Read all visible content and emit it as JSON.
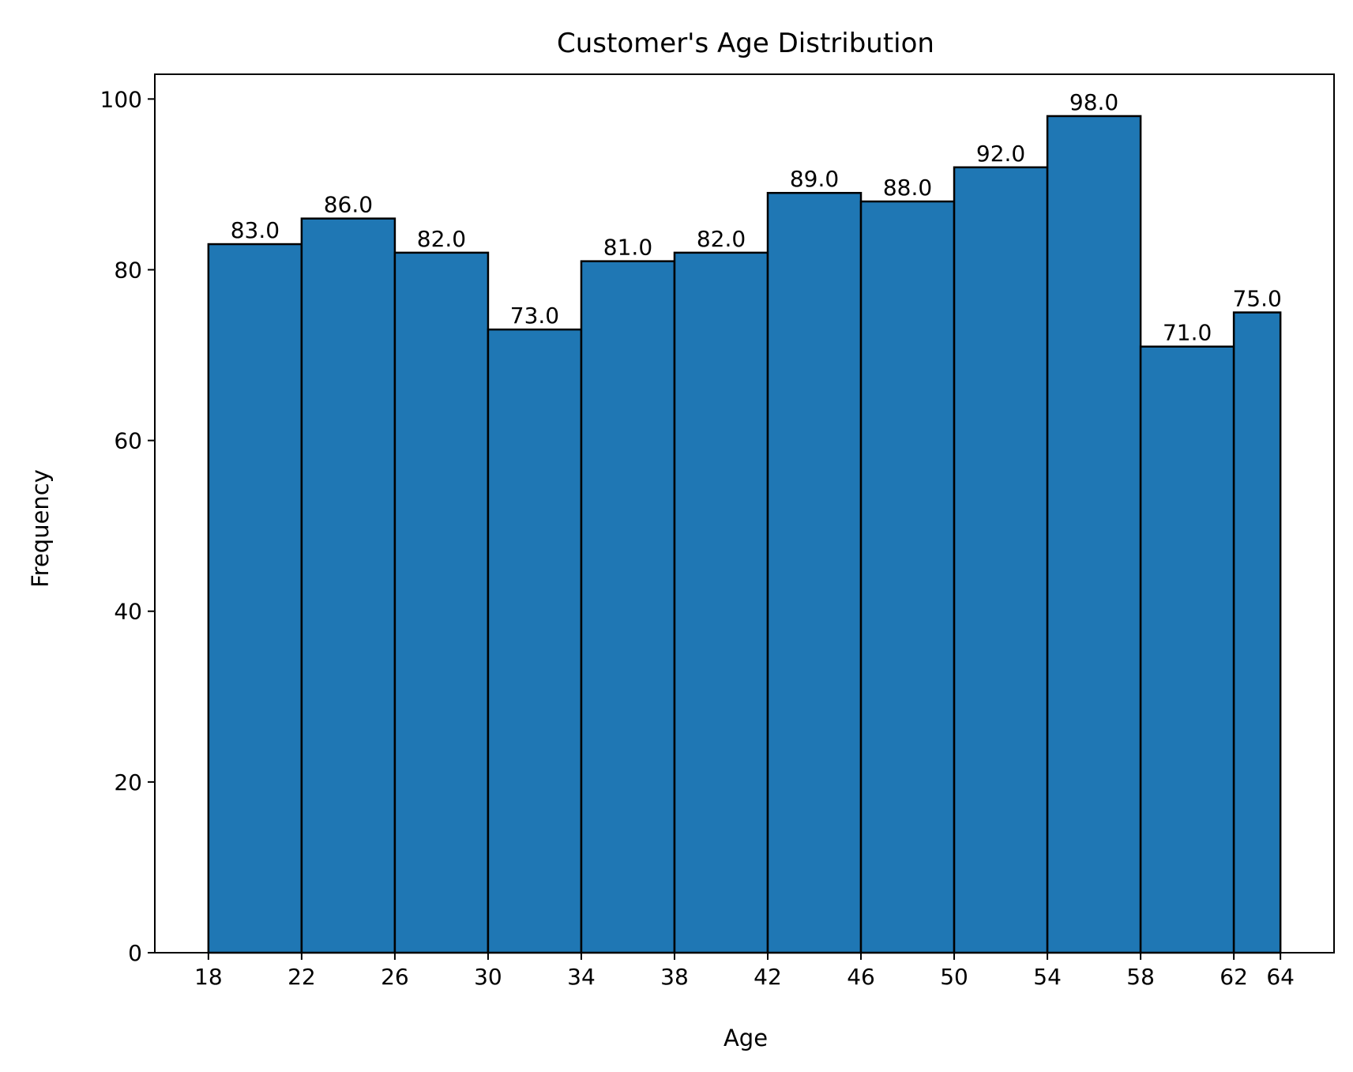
{
  "chart_data": {
    "type": "bar",
    "title": "Customer's Age Distribution",
    "xlabel": "Age",
    "ylabel": "Frequency",
    "bin_edges": [
      18,
      22,
      26,
      30,
      34,
      38,
      42,
      46,
      50,
      54,
      58,
      62,
      64
    ],
    "values": [
      83,
      86,
      82,
      73,
      81,
      82,
      89,
      88,
      92,
      98,
      71,
      75
    ],
    "value_labels": [
      "83.0",
      "86.0",
      "82.0",
      "73.0",
      "81.0",
      "82.0",
      "89.0",
      "88.0",
      "92.0",
      "98.0",
      "71.0",
      "75.0"
    ],
    "xticks": [
      18,
      22,
      26,
      30,
      34,
      38,
      42,
      46,
      50,
      54,
      58,
      62,
      64
    ],
    "xtick_labels": [
      "18",
      "22",
      "26",
      "30",
      "34",
      "38",
      "42",
      "46",
      "50",
      "54",
      "58",
      "62",
      "64"
    ],
    "yticks": [
      0,
      20,
      40,
      60,
      80,
      100
    ],
    "ytick_labels": [
      "0",
      "20",
      "40",
      "60",
      "80",
      "100"
    ],
    "xlim": [
      15.7,
      66.3
    ],
    "ylim": [
      0,
      102.9
    ],
    "grid": false,
    "colors": {
      "bar": "#1f77b4",
      "edge": "#000000",
      "axes": "#000000"
    }
  }
}
